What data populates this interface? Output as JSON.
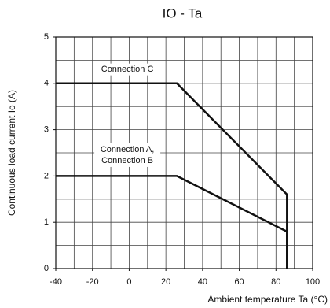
{
  "chart_data": {
    "type": "line",
    "title": "IO - Ta",
    "x_label": "Ambient temperature Ta (°C)",
    "y_label": "Continuous load current Io (A)",
    "xlim": [
      -40,
      100
    ],
    "xticks": [
      -40,
      -20,
      0,
      20,
      40,
      60,
      80,
      100
    ],
    "ylim": [
      0,
      5
    ],
    "yticks": [
      0,
      1,
      2,
      3,
      4,
      5
    ],
    "xgrid": [
      -30,
      -20,
      -10,
      0,
      10,
      20,
      30,
      40,
      50,
      60,
      70,
      80,
      90
    ],
    "ygrid": [
      0.5,
      1,
      1.5,
      2,
      2.5,
      3,
      3.5,
      4,
      4.5
    ],
    "series": [
      {
        "name": [
          "Connection C"
        ],
        "color": "#111111",
        "x": [
          -40,
          26,
          86,
          86
        ],
        "values": [
          4,
          4,
          1.6,
          0
        ]
      },
      {
        "name": [
          "Connection A,",
          "Connection B"
        ],
        "color": "#111111",
        "x": [
          -40,
          26,
          86,
          86
        ],
        "values": [
          2,
          2,
          0.8,
          0
        ]
      }
    ]
  }
}
